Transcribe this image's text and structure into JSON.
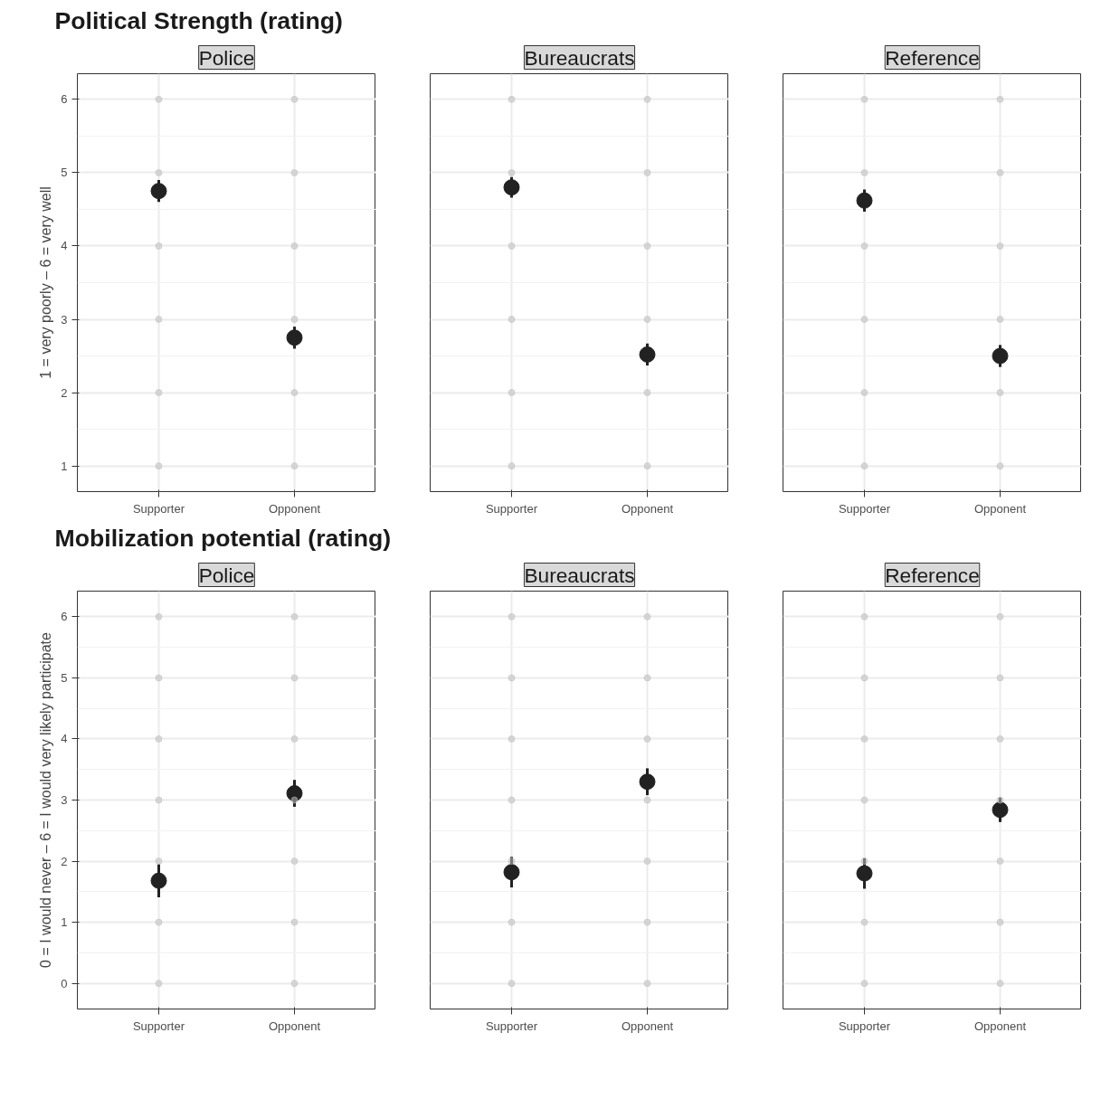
{
  "chart_data": [
    {
      "type": "scatter",
      "title": "Political Strength (rating)",
      "subtitle": "Police",
      "ylabel": "1 = very poorly – 6 = very well",
      "categories": [
        "Supporter",
        "Opponent"
      ],
      "ylim": [
        0.65,
        6.35
      ],
      "yticks": [
        1,
        2,
        3,
        4,
        5,
        6
      ],
      "grid": true,
      "marker": "circle",
      "series": [
        {
          "color": "#bdbdbd",
          "x": [
            "Supporter",
            "Supporter",
            "Supporter",
            "Supporter",
            "Supporter",
            "Supporter",
            "Opponent",
            "Opponent",
            "Opponent",
            "Opponent",
            "Opponent",
            "Opponent"
          ],
          "values": [
            1,
            2,
            3,
            4,
            5,
            6,
            1,
            2,
            3,
            4,
            5,
            6
          ]
        },
        {
          "color": "#222222",
          "values": [
            4.75,
            2.75
          ],
          "errors": [
            0.15,
            0.15
          ]
        }
      ]
    },
    {
      "type": "scatter",
      "subtitle": "Bureaucrats",
      "categories": [
        "Supporter",
        "Opponent"
      ],
      "ylim": [
        0.65,
        6.35
      ],
      "yticks": [
        1,
        2,
        3,
        4,
        5,
        6
      ],
      "tick_labels": "x",
      "grid": true,
      "marker": "circle",
      "series": [
        {
          "color": "#bdbdbd",
          "x": [
            "Supporter",
            "Supporter",
            "Supporter",
            "Supporter",
            "Supporter",
            "Supporter",
            "Opponent",
            "Opponent",
            "Opponent",
            "Opponent",
            "Opponent",
            "Opponent"
          ],
          "values": [
            1,
            2,
            3,
            4,
            5,
            6,
            1,
            2,
            3,
            4,
            5,
            6
          ]
        },
        {
          "color": "#222222",
          "values": [
            4.8,
            2.52
          ],
          "errors": [
            0.14,
            0.15
          ]
        }
      ]
    },
    {
      "type": "scatter",
      "subtitle": "Reference",
      "categories": [
        "Supporter",
        "Opponent"
      ],
      "ylim": [
        0.65,
        6.35
      ],
      "yticks": [
        1,
        2,
        3,
        4,
        5,
        6
      ],
      "tick_labels": "x",
      "grid": true,
      "marker": "circle",
      "series": [
        {
          "color": "#bdbdbd",
          "x": [
            "Supporter",
            "Supporter",
            "Supporter",
            "Supporter",
            "Supporter",
            "Supporter",
            "Opponent",
            "Opponent",
            "Opponent",
            "Opponent",
            "Opponent",
            "Opponent"
          ],
          "values": [
            1,
            2,
            3,
            4,
            5,
            6,
            1,
            2,
            3,
            4,
            5,
            6
          ]
        },
        {
          "color": "#222222",
          "values": [
            4.62,
            2.5
          ],
          "errors": [
            0.15,
            0.15
          ]
        }
      ]
    },
    {
      "type": "scatter",
      "title": "Mobilization potential (rating)",
      "subtitle": "Police",
      "ylabel": "0 = I would never – 6 = I would very likely participate",
      "categories": [
        "Supporter",
        "Opponent"
      ],
      "ylim": [
        -0.42,
        6.42
      ],
      "yticks": [
        0,
        1,
        2,
        3,
        4,
        5,
        6
      ],
      "grid": true,
      "marker": "circle",
      "series": [
        {
          "color": "#bdbdbd",
          "x": [
            "Supporter",
            "Supporter",
            "Supporter",
            "Supporter",
            "Supporter",
            "Supporter",
            "Supporter",
            "Opponent",
            "Opponent",
            "Opponent",
            "Opponent",
            "Opponent",
            "Opponent",
            "Opponent"
          ],
          "values": [
            0,
            1,
            2,
            3,
            4,
            5,
            6,
            0,
            1,
            2,
            3,
            4,
            5,
            6
          ]
        },
        {
          "color": "#222222",
          "values": [
            1.68,
            3.11
          ],
          "errors": [
            0.27,
            0.22
          ]
        }
      ]
    },
    {
      "type": "scatter",
      "subtitle": "Bureaucrats",
      "categories": [
        "Supporter",
        "Opponent"
      ],
      "ylim": [
        -0.42,
        6.42
      ],
      "yticks": [
        0,
        1,
        2,
        3,
        4,
        5,
        6
      ],
      "tick_labels": "x",
      "grid": true,
      "marker": "circle",
      "series": [
        {
          "color": "#bdbdbd",
          "x": [
            "Supporter",
            "Supporter",
            "Supporter",
            "Supporter",
            "Supporter",
            "Supporter",
            "Supporter",
            "Opponent",
            "Opponent",
            "Opponent",
            "Opponent",
            "Opponent",
            "Opponent",
            "Opponent"
          ],
          "values": [
            0,
            1,
            2,
            3,
            4,
            5,
            6,
            0,
            1,
            2,
            3,
            4,
            5,
            6
          ]
        },
        {
          "color": "#222222",
          "values": [
            1.82,
            3.3
          ],
          "errors": [
            0.25,
            0.22
          ]
        }
      ]
    },
    {
      "type": "scatter",
      "subtitle": "Reference",
      "categories": [
        "Supporter",
        "Opponent"
      ],
      "ylim": [
        -0.42,
        6.42
      ],
      "yticks": [
        0,
        1,
        2,
        3,
        4,
        5,
        6
      ],
      "tick_labels": "x",
      "grid": true,
      "marker": "circle",
      "series": [
        {
          "color": "#bdbdbd",
          "x": [
            "Supporter",
            "Supporter",
            "Supporter",
            "Supporter",
            "Supporter",
            "Supporter",
            "Supporter",
            "Opponent",
            "Opponent",
            "Opponent",
            "Opponent",
            "Opponent",
            "Opponent",
            "Opponent"
          ],
          "values": [
            0,
            1,
            2,
            3,
            4,
            5,
            6,
            0,
            1,
            2,
            3,
            4,
            5,
            6
          ]
        },
        {
          "color": "#222222",
          "values": [
            1.8,
            2.84
          ],
          "errors": [
            0.25,
            0.2
          ]
        }
      ]
    }
  ]
}
